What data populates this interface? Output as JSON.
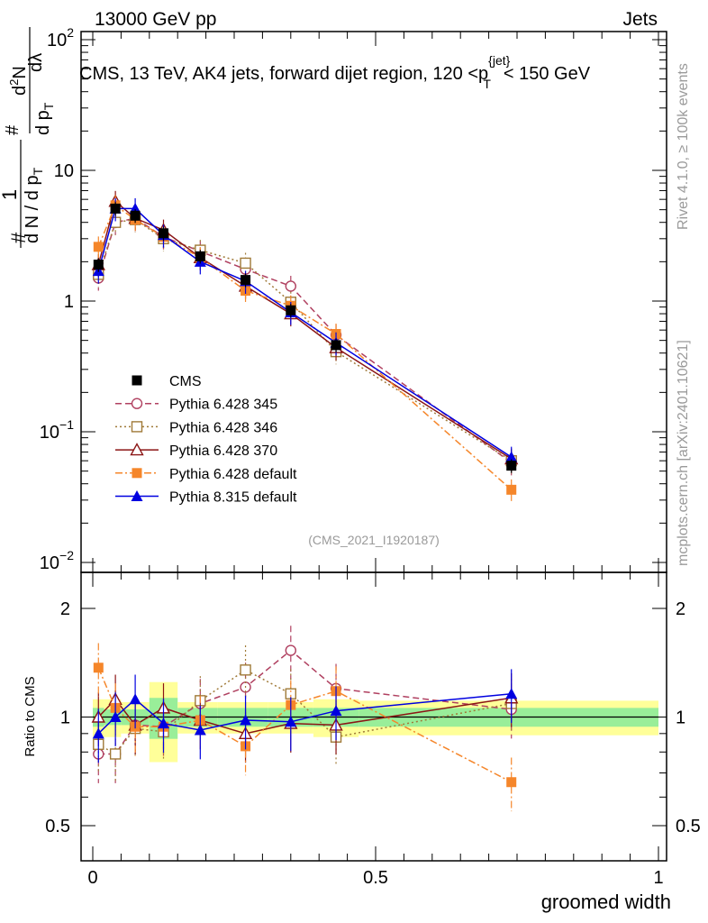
{
  "header": {
    "energy_label": "13000 GeV pp",
    "category_label": "Jets"
  },
  "side_labels": {
    "rivet": "Rivet 4.1.0, ≥ 100k events",
    "mcplots": "mcplots.cern.ch [arXiv:2401.10621]"
  },
  "chart_data": [
    {
      "type": "scatter",
      "panel": "main",
      "title": "CMS, 13 TeV, AK4 jets, forward dijet region, 120 <p_T^{jet}< 150 GeV",
      "title_parts": {
        "lead": "CMS, 13 TeV, AK4 jets, forward dijet region, 120 <p",
        "sup": "{jet}",
        "sub": "T",
        "tail": "< 150 GeV"
      },
      "analysis_id": "(CMS_2021_I1920187)",
      "xlabel": "groomed width",
      "ylabel": "1/dN/dp_T  d²N/dp_T dλ",
      "ylabel_parts": {
        "hash1": "#",
        "one": "1",
        "denominator": "d N / d p",
        "t1": "T",
        "hash2": "#",
        "numer2": "d",
        "sup2": "2",
        "numer2b": "N",
        "denom2": "d p",
        "t2": "T",
        "dlambda": "dλ"
      },
      "xlim": [
        0,
        1
      ],
      "ylim": [
        0.01,
        100
      ],
      "yscale": "log",
      "y_tick_labels": [
        {
          "base": "10",
          "exp": "−2",
          "value": 0.01
        },
        {
          "base": "10",
          "exp": "−1",
          "value": 0.1
        },
        {
          "base": "1",
          "exp": "",
          "value": 1
        },
        {
          "base": "10",
          "exp": "",
          "value": 10
        },
        {
          "base": "10",
          "exp": "2",
          "value": 100
        }
      ],
      "x_tick_labels": [
        "0",
        "0.5",
        "1"
      ],
      "x": [
        0.01,
        0.04,
        0.075,
        0.125,
        0.19,
        0.27,
        0.35,
        0.43,
        0.74
      ],
      "series": [
        {
          "name": "CMS",
          "color": "#000000",
          "marker": "square-filled",
          "line": "none",
          "values": [
            1.9,
            5.1,
            4.5,
            3.3,
            2.2,
            1.45,
            0.85,
            0.46,
            0.055
          ]
        },
        {
          "name": "Pythia 6.428 345",
          "color": "#b04060",
          "marker": "circle-open",
          "line": "dashed",
          "values": [
            1.5,
            4.0,
            4.3,
            3.1,
            2.4,
            1.75,
            1.3,
            0.55,
            0.058
          ]
        },
        {
          "name": "Pythia 6.428 346",
          "color": "#a07a38",
          "marker": "square-open",
          "line": "dotted",
          "values": [
            1.6,
            4.0,
            4.2,
            3.0,
            2.45,
            1.95,
            0.98,
            0.41,
            0.06
          ]
        },
        {
          "name": "Pythia 6.428 370",
          "color": "#8b1515",
          "marker": "triangle-open",
          "line": "solid",
          "values": [
            1.9,
            5.8,
            4.3,
            3.5,
            2.15,
            1.3,
            0.8,
            0.44,
            0.062
          ]
        },
        {
          "name": "Pythia 6.428 default",
          "color": "#f5862a",
          "marker": "square-filled",
          "line": "dashdot",
          "values": [
            2.6,
            5.4,
            4.2,
            3.1,
            2.15,
            1.2,
            0.92,
            0.56,
            0.036
          ]
        },
        {
          "name": "Pythia 8.315 default",
          "color": "#0000e0",
          "marker": "triangle-filled",
          "line": "solid",
          "values": [
            1.7,
            5.1,
            5.1,
            3.2,
            2.0,
            1.42,
            0.82,
            0.48,
            0.064
          ]
        }
      ]
    },
    {
      "type": "scatter",
      "panel": "ratio",
      "ylabel": "Ratio to CMS",
      "xlabel": "groomed width",
      "xlim": [
        0,
        1
      ],
      "ylim": [
        0.4,
        2.4
      ],
      "yscale": "log",
      "y_tick_labels": [
        "0.5",
        "1",
        "2"
      ],
      "y_tick_values": [
        0.5,
        1,
        2
      ],
      "reference": 1,
      "bins": [
        [
          0,
          0.02
        ],
        [
          0.02,
          0.05
        ],
        [
          0.05,
          0.1
        ],
        [
          0.1,
          0.15
        ],
        [
          0.15,
          0.22
        ],
        [
          0.22,
          0.31
        ],
        [
          0.31,
          0.39
        ],
        [
          0.39,
          0.47
        ],
        [
          0.47,
          1.0
        ]
      ],
      "uncert_inner": [
        0.06,
        0.05,
        0.05,
        0.13,
        0.06,
        0.06,
        0.06,
        0.06,
        0.06
      ],
      "uncert_outer": [
        0.12,
        0.12,
        0.1,
        0.25,
        0.1,
        0.1,
        0.1,
        0.12,
        0.11
      ],
      "series": [
        {
          "name": "Pythia 6.428 345",
          "values": [
            0.79,
            0.79,
            0.95,
            0.94,
            1.09,
            1.21,
            1.53,
            1.2,
            1.05
          ]
        },
        {
          "name": "Pythia 6.428 346",
          "values": [
            0.84,
            0.79,
            0.93,
            0.91,
            1.11,
            1.35,
            1.16,
            0.88,
            1.09
          ]
        },
        {
          "name": "Pythia 6.428 370",
          "values": [
            1.0,
            1.12,
            0.95,
            1.06,
            0.98,
            0.9,
            0.96,
            0.95,
            1.13
          ]
        },
        {
          "name": "Pythia 6.428 default",
          "values": [
            1.37,
            1.06,
            0.94,
            0.94,
            0.98,
            0.83,
            1.08,
            1.18,
            0.66
          ]
        },
        {
          "name": "Pythia 8.315 default",
          "values": [
            0.9,
            1.0,
            1.12,
            0.96,
            0.92,
            0.98,
            0.97,
            1.04,
            1.16
          ]
        }
      ]
    }
  ]
}
